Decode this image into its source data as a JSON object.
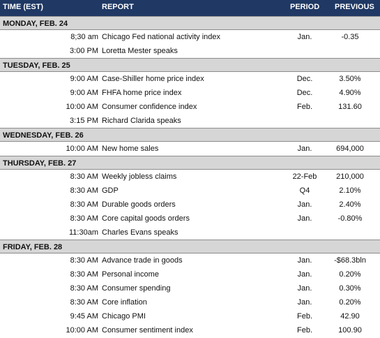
{
  "header": {
    "time": "TIME (EST)",
    "report": "REPORT",
    "period": "PERIOD",
    "previous": "PREVIOUS"
  },
  "days": [
    {
      "label": "MONDAY, FEB. 24",
      "rows": [
        {
          "time": "8;30 am",
          "report": "Chicago Fed national activity index",
          "period": "Jan.",
          "previous": "-0.35"
        },
        {
          "time": "3:00 PM",
          "report": "Loretta Mester speaks",
          "period": "",
          "previous": ""
        }
      ]
    },
    {
      "label": "TUESDAY, FEB. 25",
      "rows": [
        {
          "time": "9:00 AM",
          "report": "Case-Shiller home price index",
          "period": "Dec.",
          "previous": "3.50%"
        },
        {
          "time": "9:00 AM",
          "report": "FHFA home price index",
          "period": "Dec.",
          "previous": "4.90%"
        },
        {
          "time": "10:00 AM",
          "report": "Consumer confidence index",
          "period": "Feb.",
          "previous": "131.60"
        },
        {
          "time": "3:15 PM",
          "report": "Richard Clarida speaks",
          "period": "",
          "previous": ""
        }
      ]
    },
    {
      "label": "WEDNESDAY, FEB. 26",
      "rows": [
        {
          "time": "10:00 AM",
          "report": "New home sales",
          "period": "Jan.",
          "previous": "694,000"
        }
      ]
    },
    {
      "label": "THURSDAY, FEB. 27",
      "rows": [
        {
          "time": "8:30 AM",
          "report": "Weekly jobless claims",
          "period": "22-Feb",
          "previous": "210,000"
        },
        {
          "time": "8:30 AM",
          "report": "GDP",
          "period": "Q4",
          "previous": "2.10%"
        },
        {
          "time": "8:30 AM",
          "report": "Durable goods orders",
          "period": "Jan.",
          "previous": "2.40%"
        },
        {
          "time": "8:30 AM",
          "report": "Core capital goods orders",
          "period": "Jan.",
          "previous": "-0.80%"
        },
        {
          "time": "11:30am",
          "report": "Charles Evans speaks",
          "period": "",
          "previous": ""
        }
      ]
    },
    {
      "label": "FRIDAY, FEB. 28",
      "rows": [
        {
          "time": "8:30 AM",
          "report": "Advance trade in goods",
          "period": "Jan.",
          "previous": "-$68.3bln"
        },
        {
          "time": "8:30 AM",
          "report": "Personal income",
          "period": "Jan.",
          "previous": "0.20%"
        },
        {
          "time": "8:30 AM",
          "report": "Consumer spending",
          "period": "Jan.",
          "previous": "0.30%"
        },
        {
          "time": "8:30 AM",
          "report": "Core inflation",
          "period": "Jan.",
          "previous": "0.20%"
        },
        {
          "time": "9:45 AM",
          "report": "Chicago PMI",
          "period": "Feb.",
          "previous": "42.90"
        },
        {
          "time": "10:00 AM",
          "report": "Consumer sentiment index",
          "period": "Feb.",
          "previous": "100.90"
        }
      ]
    }
  ]
}
